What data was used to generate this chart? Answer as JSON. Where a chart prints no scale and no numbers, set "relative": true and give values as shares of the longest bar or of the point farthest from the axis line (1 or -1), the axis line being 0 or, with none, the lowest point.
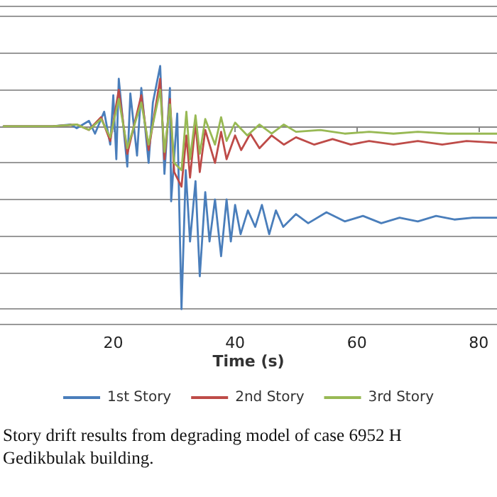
{
  "chart_data": {
    "type": "line",
    "relative": true,
    "xlabel": "Time (s)",
    "xlim": [
      1.4,
      83
    ],
    "xticks": [
      20,
      40,
      60,
      80
    ],
    "grid": true,
    "legend": "bottom",
    "marker": "none",
    "line_style": "solid",
    "annotations": [
      "Story drift results from degrading model of case 6952 H",
      "Gedikbulak building."
    ],
    "series": [
      {
        "name": "1st Story",
        "color": "#4a7ebb",
        "x": [
          2,
          10,
          13,
          14,
          16,
          17,
          18.5,
          19.5,
          20,
          20.5,
          20.9,
          22.3,
          22.8,
          23.9,
          24.6,
          25.8,
          26.5,
          27.7,
          28.4,
          29.3,
          29.5,
          30.5,
          31.2,
          31.9,
          32.6,
          33.5,
          34.2,
          35.1,
          35.8,
          36.7,
          37.7,
          38.6,
          39.3,
          40,
          40.9,
          42.1,
          43.3,
          44.4,
          45.6,
          46.7,
          47.9,
          50,
          52,
          55,
          58,
          61,
          64,
          67,
          70,
          73,
          76,
          79,
          83
        ],
        "values": [
          0,
          0,
          0.01,
          -0.01,
          0.03,
          -0.04,
          0.08,
          -0.1,
          0.17,
          -0.18,
          0.26,
          -0.22,
          0.18,
          -0.16,
          0.21,
          -0.2,
          0.13,
          0.33,
          -0.26,
          0.21,
          -0.41,
          0.07,
          -1,
          -0.24,
          -0.63,
          -0.3,
          -0.82,
          -0.36,
          -0.63,
          -0.4,
          -0.71,
          -0.4,
          -0.63,
          -0.43,
          -0.59,
          -0.46,
          -0.55,
          -0.43,
          -0.59,
          -0.46,
          -0.55,
          -0.48,
          -0.53,
          -0.47,
          -0.52,
          -0.49,
          -0.53,
          -0.5,
          -0.52,
          -0.49,
          -0.51,
          -0.5,
          -0.5
        ]
      },
      {
        "name": "2nd Story",
        "color": "#be4b48",
        "x": [
          2,
          10,
          14,
          16,
          18,
          19.5,
          20.9,
          22.3,
          24.6,
          25.8,
          27.7,
          28.4,
          29.3,
          30,
          31.2,
          32,
          32.6,
          33.5,
          34.2,
          35.1,
          36.7,
          37.7,
          38.6,
          40,
          41,
          42.5,
          44,
          46,
          48,
          50,
          53,
          56,
          59,
          62,
          66,
          70,
          74,
          78,
          83
        ],
        "values": [
          0,
          0,
          0.01,
          -0.02,
          0.05,
          -0.08,
          0.2,
          -0.15,
          0.17,
          -0.13,
          0.26,
          -0.18,
          0.15,
          -0.25,
          -0.33,
          -0.05,
          -0.28,
          0.02,
          -0.25,
          -0.02,
          -0.2,
          -0.03,
          -0.18,
          -0.05,
          -0.13,
          -0.04,
          -0.12,
          -0.05,
          -0.1,
          -0.06,
          -0.1,
          -0.07,
          -0.1,
          -0.08,
          -0.1,
          -0.08,
          -0.1,
          -0.08,
          -0.09
        ]
      },
      {
        "name": "3rd Story",
        "color": "#98b954",
        "x": [
          2,
          10,
          14,
          16,
          18,
          19.5,
          20.9,
          22.3,
          24.6,
          25.8,
          27.7,
          28.4,
          29.3,
          30,
          31.2,
          32,
          32.6,
          33.5,
          34.2,
          35.1,
          36.7,
          37.7,
          38.6,
          40,
          42,
          44,
          46,
          48,
          50,
          54,
          58,
          62,
          66,
          70,
          75,
          83
        ],
        "values": [
          0,
          0,
          0.01,
          -0.02,
          0.04,
          -0.06,
          0.15,
          -0.12,
          0.13,
          -0.1,
          0.2,
          -0.14,
          0.12,
          -0.2,
          -0.24,
          0.08,
          -0.18,
          0.06,
          -0.15,
          0.04,
          -0.1,
          0.05,
          -0.08,
          0.02,
          -0.05,
          0.01,
          -0.04,
          0.01,
          -0.03,
          -0.02,
          -0.04,
          -0.03,
          -0.04,
          -0.03,
          -0.04,
          -0.04
        ]
      }
    ]
  }
}
